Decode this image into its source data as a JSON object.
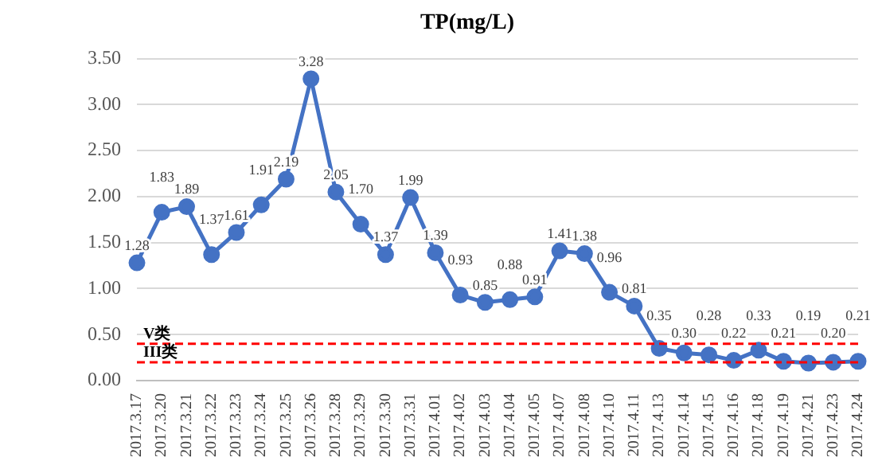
{
  "chart_data": {
    "type": "line",
    "title": "TP(mg/L)",
    "categories": [
      "2017.3.17",
      "2017.3.20",
      "2017.3.21",
      "2017.3.22",
      "2017.3.23",
      "2017.3.24",
      "2017.3.25",
      "2017.3.26",
      "2017.3.28",
      "2017.3.29",
      "2017.3.30",
      "2017.3.31",
      "2017.4.01",
      "2017.4.02",
      "2017.4.03",
      "2017.4.04",
      "2017.4.05",
      "2017.4.07",
      "2017.4.08",
      "2017.4.10",
      "2017.4.11",
      "2017.4.13",
      "2017.4.14",
      "2017.4.15",
      "2017.4.16",
      "2017.4.18",
      "2017.4.19",
      "2017.4.21",
      "2017.4.23",
      "2017.4.24"
    ],
    "series": [
      {
        "color": "#4472c4",
        "values": [
          1.28,
          1.83,
          1.89,
          1.37,
          1.61,
          1.91,
          2.19,
          3.28,
          2.05,
          1.7,
          1.37,
          1.99,
          1.39,
          0.93,
          0.85,
          0.88,
          0.91,
          1.41,
          1.38,
          0.96,
          0.81,
          0.35,
          0.3,
          0.28,
          0.22,
          0.33,
          0.21,
          0.19,
          0.2,
          0.21
        ],
        "value_labels": [
          "1.28",
          "1.83",
          "1.89",
          "1.37",
          "1.61",
          "1.91",
          "2.19",
          "3.28",
          "2.05",
          "1.70",
          "1.37",
          "1.99",
          "1.39",
          "0.93",
          "0.85",
          "0.88",
          "0.91",
          "1.41",
          "1.38",
          "0.96",
          "0.81",
          "0.35",
          "0.30",
          "0.28",
          "0.22",
          "0.33",
          "0.21",
          "0.19",
          "0.20",
          "0.21"
        ]
      }
    ],
    "ylim": [
      0,
      3.5
    ],
    "yticks": [
      {
        "value": 0,
        "label": "0.00"
      },
      {
        "value": 0.5,
        "label": "0.50"
      },
      {
        "value": 1,
        "label": "1.00"
      },
      {
        "value": 1.5,
        "label": "1.50"
      },
      {
        "value": 2,
        "label": "2.00"
      },
      {
        "value": 2.5,
        "label": "2.50"
      },
      {
        "value": 3,
        "label": "3.00"
      },
      {
        "value": 3.5,
        "label": "3.50"
      }
    ],
    "ref_lines": [
      {
        "axis": "y",
        "value": 0.4,
        "label": "V类",
        "color": "#ff0000",
        "line_style": "dashed"
      },
      {
        "axis": "y",
        "value": 0.2,
        "label": "III类",
        "color": "#ff0000",
        "line_style": "dashed"
      }
    ],
    "grid": "y",
    "legend": false,
    "marker": "circle",
    "line_style": "solid"
  }
}
